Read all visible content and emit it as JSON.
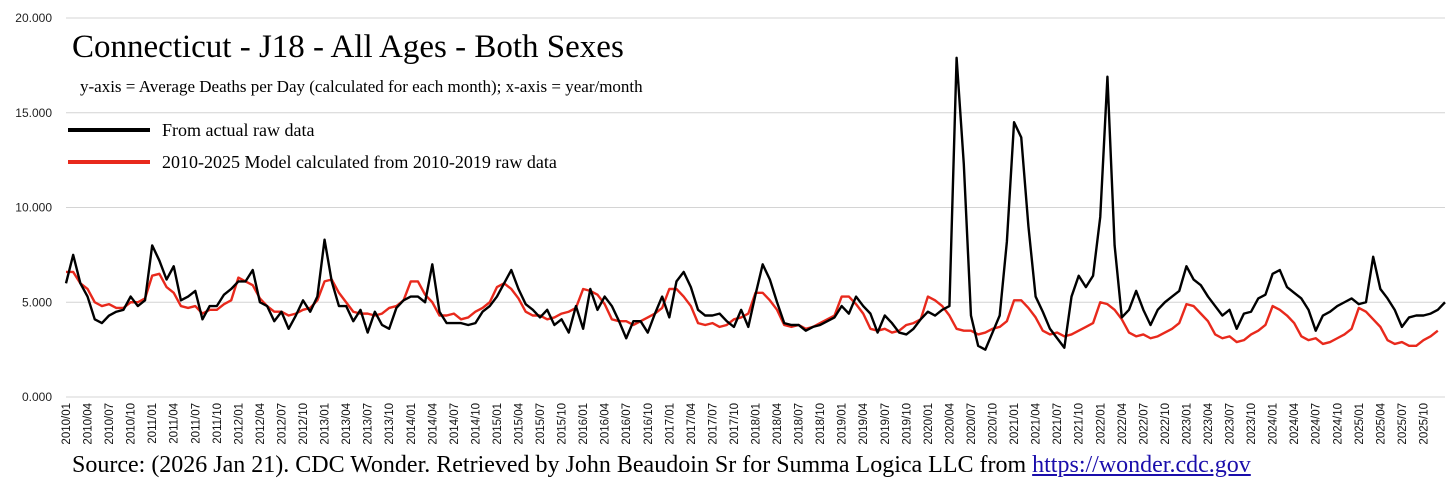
{
  "chart_data": {
    "type": "line",
    "title": "Connecticut - J18 - All Ages - Both Sexes",
    "subtitle": "y-axis = Average Deaths per Day (calculated for each month); x-axis = year/month",
    "ylim": [
      0,
      20
    ],
    "y_ticks": [
      "0.000",
      "5.000",
      "10.000",
      "15.000",
      "20.000"
    ],
    "y_tick_values": [
      0,
      5,
      10,
      15,
      20
    ],
    "x_tick_labels": [
      "2010/01",
      "2010/04",
      "2010/07",
      "2010/10",
      "2011/01",
      "2011/04",
      "2011/07",
      "2011/10",
      "2012/01",
      "2012/04",
      "2012/07",
      "2012/10",
      "2013/01",
      "2013/04",
      "2013/07",
      "2013/10",
      "2014/01",
      "2014/04",
      "2014/07",
      "2014/10",
      "2015/01",
      "2015/04",
      "2015/07",
      "2015/10",
      "2016/01",
      "2016/04",
      "2016/07",
      "2016/10",
      "2017/01",
      "2017/04",
      "2017/07",
      "2017/10",
      "2018/01",
      "2018/04",
      "2018/07",
      "2018/10",
      "2019/01",
      "2019/04",
      "2019/07",
      "2019/10",
      "2020/01",
      "2020/04",
      "2020/07",
      "2020/10",
      "2021/01",
      "2021/04",
      "2021/07",
      "2021/10",
      "2022/01",
      "2022/04",
      "2022/07",
      "2022/10",
      "2023/01",
      "2023/04",
      "2023/07",
      "2023/10",
      "2024/01",
      "2024/04",
      "2024/07",
      "2024/10",
      "2025/01",
      "2025/04",
      "2025/07",
      "2025/10"
    ],
    "x_tick_step_months": 3,
    "grid": true,
    "legend_position": "top-left",
    "series": [
      {
        "name": "From actual raw data",
        "color": "#000000",
        "values": [
          6.0,
          7.5,
          6.0,
          5.3,
          4.1,
          3.9,
          4.3,
          4.5,
          4.6,
          5.3,
          4.8,
          5.1,
          8.0,
          7.2,
          6.2,
          6.9,
          5.1,
          5.3,
          5.6,
          4.1,
          4.8,
          4.8,
          5.4,
          5.7,
          6.1,
          6.1,
          6.7,
          5.0,
          4.8,
          4.0,
          4.5,
          3.6,
          4.3,
          5.1,
          4.5,
          5.3,
          8.3,
          6.1,
          4.8,
          4.8,
          4.0,
          4.6,
          3.4,
          4.5,
          3.8,
          3.6,
          4.7,
          5.1,
          5.3,
          5.3,
          5.0,
          7.0,
          4.5,
          3.9,
          3.9,
          3.9,
          3.8,
          3.9,
          4.5,
          4.8,
          5.3,
          6.0,
          6.7,
          5.7,
          4.9,
          4.6,
          4.2,
          4.6,
          3.8,
          4.1,
          3.4,
          4.8,
          3.6,
          5.7,
          4.6,
          5.3,
          4.8,
          4.0,
          3.1,
          4.0,
          4.0,
          3.4,
          4.4,
          5.3,
          4.2,
          6.1,
          6.6,
          5.8,
          4.6,
          4.3,
          4.3,
          4.4,
          4.0,
          3.7,
          4.6,
          3.7,
          5.4,
          7.0,
          6.2,
          5.0,
          3.9,
          3.8,
          3.8,
          3.5,
          3.7,
          3.8,
          4.0,
          4.2,
          4.8,
          4.4,
          5.3,
          4.8,
          4.4,
          3.4,
          4.3,
          3.9,
          3.4,
          3.3,
          3.6,
          4.1,
          4.5,
          4.3,
          4.6,
          4.8,
          17.9,
          12.3,
          4.3,
          2.7,
          2.5,
          3.4,
          4.3,
          8.2,
          14.5,
          13.7,
          9.0,
          5.3,
          4.5,
          3.6,
          3.1,
          2.6,
          5.3,
          6.4,
          5.8,
          6.4,
          9.5,
          16.9,
          8.0,
          4.2,
          4.6,
          5.6,
          4.6,
          3.8,
          4.6,
          5.0,
          5.3,
          5.6,
          6.9,
          6.2,
          5.9,
          5.3,
          4.8,
          4.3,
          4.6,
          3.6,
          4.4,
          4.5,
          5.2,
          5.4,
          6.5,
          6.7,
          5.8,
          5.5,
          5.2,
          4.6,
          3.5,
          4.3,
          4.5,
          4.8,
          5.0,
          5.2,
          4.9,
          5.0,
          7.4,
          5.7,
          5.2,
          4.6,
          3.7,
          4.2,
          4.3,
          4.3,
          4.4,
          4.6,
          5.0
        ]
      },
      {
        "name": "2010-2025 Model calculated from 2010-2019 raw data",
        "color": "#e8291c",
        "values": [
          6.6,
          6.6,
          6.0,
          5.7,
          5.0,
          4.8,
          4.9,
          4.7,
          4.7,
          5.0,
          5.0,
          5.2,
          6.4,
          6.5,
          5.8,
          5.5,
          4.8,
          4.7,
          4.8,
          4.4,
          4.6,
          4.6,
          4.9,
          5.1,
          6.3,
          6.1,
          5.9,
          5.2,
          4.8,
          4.5,
          4.5,
          4.3,
          4.4,
          4.6,
          4.7,
          5.1,
          6.1,
          6.2,
          5.5,
          5.0,
          4.5,
          4.4,
          4.4,
          4.3,
          4.4,
          4.7,
          4.8,
          5.1,
          6.1,
          6.1,
          5.4,
          5.0,
          4.3,
          4.3,
          4.4,
          4.1,
          4.2,
          4.5,
          4.7,
          5.0,
          5.8,
          6.0,
          5.7,
          5.2,
          4.5,
          4.3,
          4.3,
          4.1,
          4.2,
          4.4,
          4.5,
          4.7,
          5.7,
          5.6,
          5.4,
          4.9,
          4.1,
          4.0,
          4.0,
          3.8,
          4.0,
          4.2,
          4.4,
          4.7,
          5.7,
          5.7,
          5.3,
          4.8,
          3.9,
          3.8,
          3.9,
          3.7,
          3.8,
          4.1,
          4.2,
          4.4,
          5.5,
          5.5,
          5.1,
          4.6,
          3.8,
          3.7,
          3.8,
          3.6,
          3.7,
          3.9,
          4.1,
          4.3,
          5.3,
          5.3,
          4.9,
          4.4,
          3.6,
          3.5,
          3.6,
          3.4,
          3.5,
          3.8,
          3.9,
          4.1,
          5.3,
          5.1,
          4.8,
          4.3,
          3.6,
          3.5,
          3.5,
          3.3,
          3.4,
          3.6,
          3.7,
          4.0,
          5.1,
          5.1,
          4.7,
          4.2,
          3.5,
          3.3,
          3.4,
          3.2,
          3.3,
          3.5,
          3.7,
          3.9,
          5.0,
          4.9,
          4.6,
          4.1,
          3.4,
          3.2,
          3.3,
          3.1,
          3.2,
          3.4,
          3.6,
          3.9,
          4.9,
          4.8,
          4.4,
          4.0,
          3.3,
          3.1,
          3.2,
          2.9,
          3.0,
          3.3,
          3.5,
          3.8,
          4.8,
          4.6,
          4.3,
          3.9,
          3.2,
          3.0,
          3.1,
          2.8,
          2.9,
          3.1,
          3.3,
          3.6,
          4.7,
          4.5,
          4.1,
          3.7,
          3.0,
          2.8,
          2.9,
          2.7,
          2.7,
          3.0,
          3.2,
          3.5
        ]
      }
    ]
  },
  "source": {
    "text": "Source: (2026 Jan 21). CDC Wonder. Retrieved by John Beaudoin Sr for Summa Logica LLC from ",
    "link": "https://wonder.cdc.gov"
  }
}
